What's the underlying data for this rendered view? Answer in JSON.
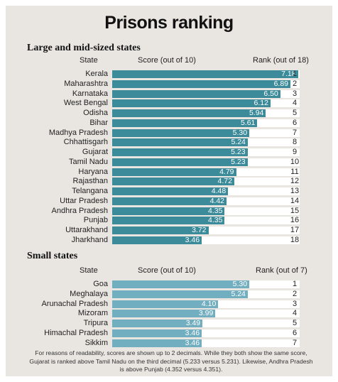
{
  "title": "Prisons ranking",
  "colors": {
    "large_bar": "#3c8b9a",
    "small_bar": "#71aec0",
    "track": "#ffffff",
    "background": "#e9e6e1"
  },
  "chart_data": [
    {
      "type": "bar",
      "title": "Large and mid-sized states",
      "column_headers": {
        "state": "State",
        "score": "Score (out of 10)",
        "rank": "Rank (out of 18)"
      },
      "xlim": [
        0,
        10
      ],
      "categories": [
        "Kerala",
        "Maharashtra",
        "Karnataka",
        "West Bengal",
        "Odisha",
        "Bihar",
        "Madhya Pradesh",
        "Chhattisgarh",
        "Gujarat",
        "Tamil Nadu",
        "Haryana",
        "Rajasthan",
        "Telangana",
        "Uttar Pradesh",
        "Andhra Pradesh",
        "Punjab",
        "Uttarakhand",
        "Jharkhand"
      ],
      "values": [
        7.18,
        6.89,
        6.5,
        6.12,
        5.94,
        5.61,
        5.3,
        5.24,
        5.23,
        5.23,
        4.79,
        4.72,
        4.48,
        4.42,
        4.35,
        4.35,
        3.72,
        3.46
      ],
      "value_labels": [
        "7.18",
        "6.89",
        "6.50",
        "6.12",
        "5.94",
        "5.61",
        "5.30",
        "5.24",
        "5.23",
        "5.23",
        "4.79",
        "4.72",
        "4.48",
        "4.42",
        "4.35",
        "4.35",
        "3.72",
        "3.46"
      ],
      "ranks": [
        "1",
        "2",
        "3",
        "4",
        "5",
        "6",
        "7",
        "8",
        "9",
        "10",
        "11",
        "12",
        "13",
        "14",
        "15",
        "16",
        "17",
        "18"
      ]
    },
    {
      "type": "bar",
      "title": "Small states",
      "column_headers": {
        "state": "State",
        "score": "Score (out of 10)",
        "rank": "Rank (out of 7)"
      },
      "xlim": [
        0,
        10
      ],
      "categories": [
        "Goa",
        "Meghalaya",
        "Arunachal Pradesh",
        "Mizoram",
        "Tripura",
        "Himachal Pradesh",
        "Sikkim"
      ],
      "values": [
        5.3,
        5.24,
        4.1,
        3.99,
        3.49,
        3.46,
        3.46
      ],
      "value_labels": [
        "5.30",
        "5.24",
        "4.10",
        "3.99",
        "3.49",
        "3.46",
        "3.46"
      ],
      "ranks": [
        "1",
        "2",
        "3",
        "4",
        "5",
        "6",
        "7"
      ]
    }
  ],
  "footnote": "For reasons of readability, scores are shown up to 2 decimals. While they both show the same score, Gujarat is ranked above Tamil Nadu on the third decimal (5.233 versus 5.231). Likewise, Andhra Pradesh is above Punjab (4.352 versus 4.351)."
}
